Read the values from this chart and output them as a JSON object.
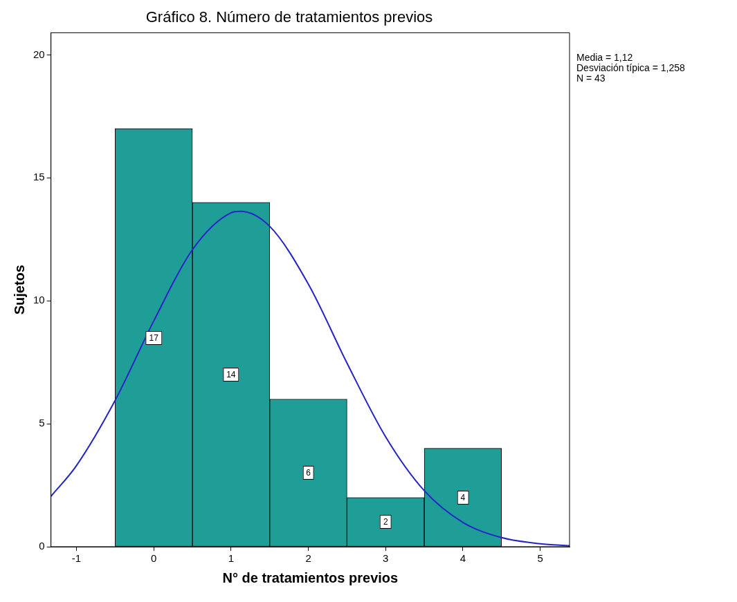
{
  "chart_data": {
    "type": "histogram",
    "title": "Gráfico 8. Número de tratamientos previos",
    "xlabel": "N° de tratamientos previos",
    "ylabel": "Sujetos",
    "bins": [
      -0.5,
      0.5,
      1.5,
      2.5,
      3.5,
      4.5
    ],
    "values": [
      17,
      14,
      6,
      2,
      4
    ],
    "color": "#1f9e98",
    "value_labels": [
      "17",
      "14",
      "6",
      "2",
      "4"
    ],
    "series": [
      {
        "type": "line",
        "color": "#2323c8",
        "x": [
          -1.33,
          -1,
          -0.5,
          0,
          0.5,
          1,
          1.12,
          1.5,
          2,
          2.5,
          3,
          3.5,
          4,
          4.5,
          5,
          5.38
        ],
        "values": [
          2.05,
          3.3,
          5.95,
          9.18,
          12.08,
          13.58,
          13.64,
          13.03,
          10.68,
          7.47,
          4.47,
          2.28,
          0.99,
          0.37,
          0.12,
          0.04
        ]
      }
    ],
    "xlim": [
      -1.33,
      5.38
    ],
    "xticks": [
      -1,
      0,
      1,
      2,
      3,
      4,
      5
    ],
    "ylim": [
      0,
      20.9
    ],
    "yticks": [
      0,
      5,
      10,
      15,
      20
    ],
    "grid": false,
    "legend": false,
    "marker": "none",
    "annotations": [
      "Media = 1,12",
      "Desviación típica = 1,258",
      "N = 43"
    ]
  }
}
